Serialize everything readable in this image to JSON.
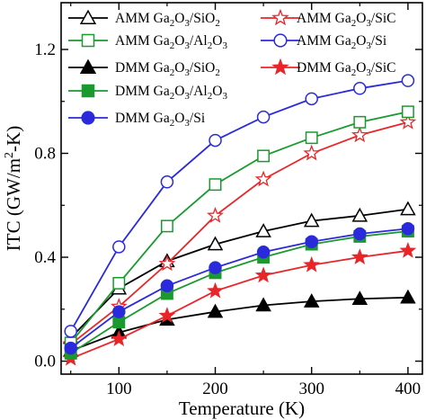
{
  "chart_data": {
    "type": "line",
    "xlabel": "Temperature (K)",
    "ylabel": "ITC (GW/m²-K)",
    "ylabel_parts": {
      "pre": "ITC (GW/m",
      "sup": "2",
      "post": "-K)"
    },
    "xlim": [
      40,
      415
    ],
    "ylim": [
      -0.05,
      1.38
    ],
    "x_ticks": [
      100,
      200,
      300,
      400
    ],
    "x_tick_labels": [
      "100",
      "200",
      "300",
      "400"
    ],
    "y_ticks": [
      0.0,
      0.4,
      0.8,
      1.2
    ],
    "y_tick_labels": [
      "0.0",
      "0.4",
      "0.8",
      "1.2"
    ],
    "x": [
      50,
      100,
      150,
      200,
      250,
      300,
      350,
      400
    ],
    "series": [
      {
        "name": "AMM Ga2O3/SiO2",
        "label_parts": [
          "AMM Ga",
          "2",
          "O",
          "3",
          "/SiO",
          "2"
        ],
        "color": "#000000",
        "marker": "triangle",
        "filled": false,
        "values": [
          0.09,
          0.28,
          0.385,
          0.45,
          0.5,
          0.54,
          0.56,
          0.585
        ]
      },
      {
        "name": "AMM Ga2O3/SiC",
        "label_parts": [
          "AMM Ga",
          "2",
          "O",
          "3",
          "/SiC",
          ""
        ],
        "color": "#e8262a",
        "marker": "star",
        "filled": false,
        "values": [
          0.065,
          0.21,
          0.375,
          0.56,
          0.7,
          0.8,
          0.87,
          0.92
        ]
      },
      {
        "name": "AMM Ga2O3/Al2O3",
        "label_parts": [
          "AMM Ga",
          "2",
          "O",
          "3",
          "/Al",
          "2",
          "O",
          "3"
        ],
        "color": "#1a9a2e",
        "marker": "square",
        "filled": false,
        "values": [
          0.07,
          0.3,
          0.52,
          0.68,
          0.79,
          0.86,
          0.92,
          0.96
        ]
      },
      {
        "name": "AMM Ga2O3/Si",
        "label_parts": [
          "AMM Ga",
          "2",
          "O",
          "3",
          "/Si",
          ""
        ],
        "color": "#2a2adc",
        "marker": "circle",
        "filled": false,
        "values": [
          0.115,
          0.44,
          0.69,
          0.85,
          0.94,
          1.01,
          1.05,
          1.08
        ]
      },
      {
        "name": "DMM Ga2O3/SiO2",
        "label_parts": [
          "DMM Ga",
          "2",
          "O",
          "3",
          "/SiO",
          "2"
        ],
        "color": "#000000",
        "marker": "triangle",
        "filled": true,
        "values": [
          0.04,
          0.11,
          0.16,
          0.19,
          0.215,
          0.23,
          0.24,
          0.245
        ]
      },
      {
        "name": "DMM Ga2O3/SiC",
        "label_parts": [
          "DMM Ga",
          "2",
          "O",
          "3",
          "/SiC",
          ""
        ],
        "color": "#e8262a",
        "marker": "star",
        "filled": true,
        "values": [
          0.01,
          0.085,
          0.175,
          0.27,
          0.33,
          0.37,
          0.4,
          0.425
        ]
      },
      {
        "name": "DMM Ga2O3/Al2O3",
        "label_parts": [
          "DMM Ga",
          "2",
          "O",
          "3",
          "/Al",
          "2",
          "O",
          "3"
        ],
        "color": "#1a9a2e",
        "marker": "square",
        "filled": true,
        "values": [
          0.03,
          0.15,
          0.26,
          0.34,
          0.4,
          0.45,
          0.48,
          0.5
        ]
      },
      {
        "name": "DMM Ga2O3/Si",
        "label_parts": [
          "DMM Ga",
          "2",
          "O",
          "3",
          "/Si",
          ""
        ],
        "color": "#2a2adc",
        "marker": "circle",
        "filled": true,
        "values": [
          0.05,
          0.19,
          0.29,
          0.36,
          0.42,
          0.46,
          0.49,
          0.51
        ]
      }
    ],
    "legend_placement": "top-left",
    "grid": false
  }
}
